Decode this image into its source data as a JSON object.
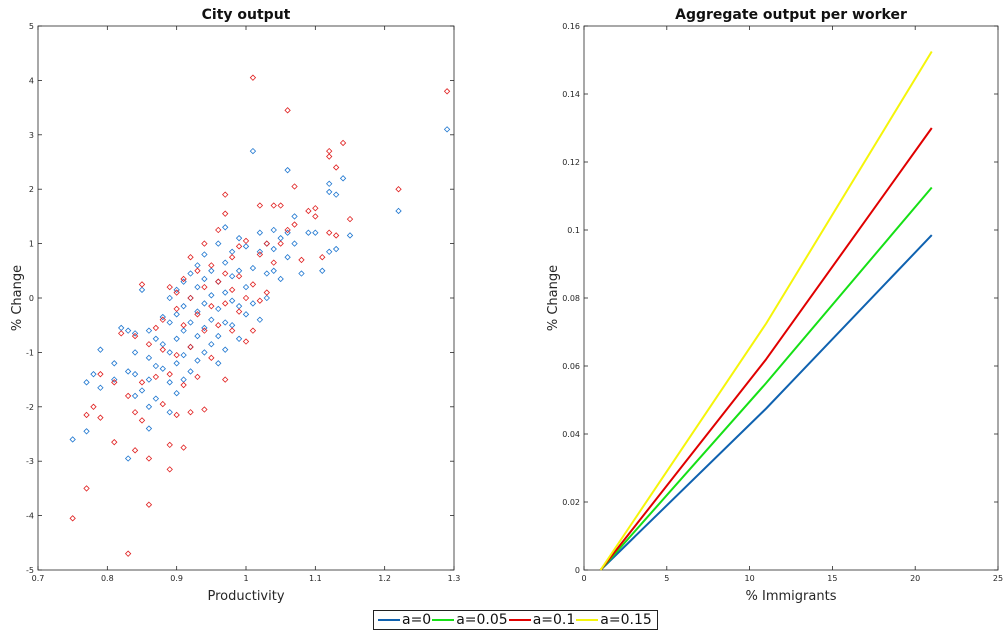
{
  "chart_data": [
    {
      "type": "scatter",
      "title": "City output",
      "xlabel": "Productivity",
      "ylabel": "% Change",
      "xlim": [
        0.7,
        1.3
      ],
      "ylim": [
        -5,
        5
      ],
      "xticks": [
        "0.7",
        "0.8",
        "0.9",
        "1",
        "1.1",
        "1.2",
        "1.3"
      ],
      "yticks": [
        "-5",
        "-4",
        "-3",
        "-2",
        "-1",
        "0",
        "1",
        "2",
        "3",
        "4",
        "5"
      ],
      "grid": false,
      "series": [
        {
          "color": "#1f77d0",
          "marker": "diamond",
          "points": [
            [
              0.75,
              -2.6
            ],
            [
              0.77,
              -2.45
            ],
            [
              0.77,
              -1.55
            ],
            [
              0.78,
              -1.4
            ],
            [
              0.79,
              -1.65
            ],
            [
              0.79,
              -0.95
            ],
            [
              0.81,
              -1.5
            ],
            [
              0.81,
              -1.2
            ],
            [
              0.82,
              -0.55
            ],
            [
              0.83,
              -0.6
            ],
            [
              0.83,
              -1.35
            ],
            [
              0.83,
              -2.95
            ],
            [
              0.84,
              -0.65
            ],
            [
              0.84,
              -1.0
            ],
            [
              0.84,
              -1.4
            ],
            [
              0.84,
              -1.8
            ],
            [
              0.85,
              0.15
            ],
            [
              0.85,
              -1.7
            ],
            [
              0.86,
              -0.6
            ],
            [
              0.86,
              -1.1
            ],
            [
              0.86,
              -1.5
            ],
            [
              0.86,
              -2.0
            ],
            [
              0.86,
              -2.4
            ],
            [
              0.87,
              -0.75
            ],
            [
              0.87,
              -1.25
            ],
            [
              0.87,
              -1.85
            ],
            [
              0.88,
              -0.35
            ],
            [
              0.88,
              -0.85
            ],
            [
              0.88,
              -1.3
            ],
            [
              0.89,
              0.0
            ],
            [
              0.89,
              -0.45
            ],
            [
              0.89,
              -1.0
            ],
            [
              0.89,
              -1.55
            ],
            [
              0.89,
              -2.1
            ],
            [
              0.9,
              0.15
            ],
            [
              0.9,
              -0.3
            ],
            [
              0.9,
              -0.75
            ],
            [
              0.9,
              -1.2
            ],
            [
              0.9,
              -1.75
            ],
            [
              0.91,
              0.3
            ],
            [
              0.91,
              -0.15
            ],
            [
              0.91,
              -0.6
            ],
            [
              0.91,
              -1.05
            ],
            [
              0.91,
              -1.5
            ],
            [
              0.92,
              0.45
            ],
            [
              0.92,
              0.0
            ],
            [
              0.92,
              -0.45
            ],
            [
              0.92,
              -0.9
            ],
            [
              0.92,
              -1.35
            ],
            [
              0.93,
              0.6
            ],
            [
              0.93,
              0.2
            ],
            [
              0.93,
              -0.25
            ],
            [
              0.93,
              -0.7
            ],
            [
              0.93,
              -1.15
            ],
            [
              0.94,
              0.8
            ],
            [
              0.94,
              0.35
            ],
            [
              0.94,
              -0.1
            ],
            [
              0.94,
              -0.55
            ],
            [
              0.94,
              -1.0
            ],
            [
              0.95,
              0.5
            ],
            [
              0.95,
              0.05
            ],
            [
              0.95,
              -0.4
            ],
            [
              0.95,
              -0.85
            ],
            [
              0.96,
              1.0
            ],
            [
              0.96,
              0.3
            ],
            [
              0.96,
              -0.2
            ],
            [
              0.96,
              -0.7
            ],
            [
              0.96,
              -1.2
            ],
            [
              0.97,
              1.3
            ],
            [
              0.97,
              0.65
            ],
            [
              0.97,
              0.1
            ],
            [
              0.97,
              -0.45
            ],
            [
              0.97,
              -0.95
            ],
            [
              0.98,
              0.85
            ],
            [
              0.98,
              0.4
            ],
            [
              0.98,
              -0.05
            ],
            [
              0.98,
              -0.5
            ],
            [
              0.99,
              1.1
            ],
            [
              0.99,
              0.5
            ],
            [
              0.99,
              -0.15
            ],
            [
              0.99,
              -0.75
            ],
            [
              1.0,
              0.95
            ],
            [
              1.0,
              0.2
            ],
            [
              1.0,
              -0.3
            ],
            [
              1.01,
              2.7
            ],
            [
              1.01,
              0.55
            ],
            [
              1.01,
              -0.1
            ],
            [
              1.02,
              1.2
            ],
            [
              1.02,
              0.85
            ],
            [
              1.02,
              -0.4
            ],
            [
              1.03,
              1.0
            ],
            [
              1.03,
              0.45
            ],
            [
              1.03,
              0.0
            ],
            [
              1.04,
              1.25
            ],
            [
              1.04,
              0.9
            ],
            [
              1.04,
              0.5
            ],
            [
              1.05,
              1.1
            ],
            [
              1.05,
              0.35
            ],
            [
              1.06,
              2.35
            ],
            [
              1.06,
              1.2
            ],
            [
              1.06,
              0.75
            ],
            [
              1.07,
              1.5
            ],
            [
              1.07,
              1.0
            ],
            [
              1.08,
              0.45
            ],
            [
              1.09,
              1.2
            ],
            [
              1.1,
              1.2
            ],
            [
              1.11,
              0.5
            ],
            [
              1.12,
              2.1
            ],
            [
              1.12,
              1.95
            ],
            [
              1.12,
              0.85
            ],
            [
              1.13,
              1.9
            ],
            [
              1.13,
              0.9
            ],
            [
              1.14,
              2.2
            ],
            [
              1.15,
              1.15
            ],
            [
              1.22,
              1.6
            ],
            [
              1.29,
              3.1
            ]
          ]
        },
        {
          "color": "#e02020",
          "marker": "diamond",
          "points": [
            [
              0.75,
              -4.05
            ],
            [
              0.77,
              -3.5
            ],
            [
              0.77,
              -2.15
            ],
            [
              0.78,
              -2.0
            ],
            [
              0.79,
              -2.2
            ],
            [
              0.79,
              -1.4
            ],
            [
              0.81,
              -2.65
            ],
            [
              0.81,
              -1.55
            ],
            [
              0.82,
              -0.65
            ],
            [
              0.83,
              -4.7
            ],
            [
              0.83,
              -1.8
            ],
            [
              0.84,
              -2.1
            ],
            [
              0.84,
              -2.8
            ],
            [
              0.84,
              -0.7
            ],
            [
              0.85,
              0.25
            ],
            [
              0.85,
              -1.55
            ],
            [
              0.85,
              -2.25
            ],
            [
              0.86,
              -3.8
            ],
            [
              0.86,
              -2.95
            ],
            [
              0.86,
              -0.85
            ],
            [
              0.87,
              -1.45
            ],
            [
              0.87,
              -0.55
            ],
            [
              0.88,
              -1.95
            ],
            [
              0.88,
              -0.4
            ],
            [
              0.88,
              -0.95
            ],
            [
              0.89,
              -3.15
            ],
            [
              0.89,
              -2.7
            ],
            [
              0.89,
              -1.4
            ],
            [
              0.89,
              0.2
            ],
            [
              0.9,
              -2.15
            ],
            [
              0.9,
              -1.05
            ],
            [
              0.9,
              -0.2
            ],
            [
              0.9,
              0.1
            ],
            [
              0.91,
              -2.75
            ],
            [
              0.91,
              -1.6
            ],
            [
              0.91,
              -0.5
            ],
            [
              0.91,
              0.35
            ],
            [
              0.92,
              -2.1
            ],
            [
              0.92,
              -0.9
            ],
            [
              0.92,
              0.0
            ],
            [
              0.92,
              0.75
            ],
            [
              0.93,
              -1.45
            ],
            [
              0.93,
              -0.3
            ],
            [
              0.93,
              0.5
            ],
            [
              0.94,
              -2.05
            ],
            [
              0.94,
              -0.6
            ],
            [
              0.94,
              0.2
            ],
            [
              0.94,
              1.0
            ],
            [
              0.95,
              -1.1
            ],
            [
              0.95,
              -0.15
            ],
            [
              0.95,
              0.6
            ],
            [
              0.96,
              -0.5
            ],
            [
              0.96,
              0.3
            ],
            [
              0.96,
              1.25
            ],
            [
              0.97,
              -1.5
            ],
            [
              0.97,
              -0.1
            ],
            [
              0.97,
              0.45
            ],
            [
              0.97,
              1.55
            ],
            [
              0.97,
              1.9
            ],
            [
              0.98,
              -0.6
            ],
            [
              0.98,
              0.15
            ],
            [
              0.98,
              0.75
            ],
            [
              0.99,
              -0.25
            ],
            [
              0.99,
              0.4
            ],
            [
              0.99,
              0.95
            ],
            [
              1.0,
              -0.8
            ],
            [
              1.0,
              0.0
            ],
            [
              1.0,
              1.05
            ],
            [
              1.01,
              4.05
            ],
            [
              1.01,
              -0.6
            ],
            [
              1.01,
              0.25
            ],
            [
              1.02,
              -0.05
            ],
            [
              1.02,
              0.8
            ],
            [
              1.02,
              1.7
            ],
            [
              1.03,
              0.1
            ],
            [
              1.03,
              1.0
            ],
            [
              1.04,
              0.65
            ],
            [
              1.04,
              1.7
            ],
            [
              1.05,
              1.7
            ],
            [
              1.05,
              1.0
            ],
            [
              1.06,
              3.45
            ],
            [
              1.06,
              1.25
            ],
            [
              1.07,
              2.05
            ],
            [
              1.07,
              1.35
            ],
            [
              1.08,
              0.7
            ],
            [
              1.09,
              1.6
            ],
            [
              1.1,
              1.65
            ],
            [
              1.1,
              1.5
            ],
            [
              1.11,
              0.75
            ],
            [
              1.12,
              2.7
            ],
            [
              1.12,
              2.6
            ],
            [
              1.12,
              1.2
            ],
            [
              1.13,
              2.4
            ],
            [
              1.13,
              1.15
            ],
            [
              1.14,
              2.85
            ],
            [
              1.15,
              1.45
            ],
            [
              1.22,
              2.0
            ],
            [
              1.29,
              3.8
            ]
          ]
        }
      ]
    },
    {
      "type": "line",
      "title": "Aggregate output per worker",
      "xlabel": "% Immigrants",
      "ylabel": "% Change",
      "xlim": [
        0,
        25
      ],
      "ylim": [
        0,
        0.16
      ],
      "xticks": [
        "0",
        "5",
        "10",
        "15",
        "20",
        "25"
      ],
      "yticks": [
        "0",
        "0.02",
        "0.04",
        "0.06",
        "0.08",
        "0.1",
        "0.12",
        "0.14",
        "0.16"
      ],
      "grid": false,
      "series": [
        {
          "name": "a=0",
          "color": "#0f62b0",
          "x": [
            1,
            11,
            21
          ],
          "y": [
            0,
            0.0475,
            0.0985
          ]
        },
        {
          "name": "a=0.05",
          "color": "#16e016",
          "x": [
            1,
            11,
            21
          ],
          "y": [
            0,
            0.055,
            0.1125
          ]
        },
        {
          "name": "a=0.1",
          "color": "#e00000",
          "x": [
            1,
            11,
            21
          ],
          "y": [
            0,
            0.062,
            0.13
          ]
        },
        {
          "name": "a=0.15",
          "color": "#f5f50a",
          "x": [
            1,
            11,
            21
          ],
          "y": [
            0,
            0.0725,
            0.1525
          ]
        }
      ]
    }
  ],
  "legend": {
    "placement": "bottom-center",
    "items": [
      {
        "label": "a=0",
        "color": "#0f62b0"
      },
      {
        "label": "a=0.05",
        "color": "#16e016"
      },
      {
        "label": "a=0.1",
        "color": "#e00000"
      },
      {
        "label": "a=0.15",
        "color": "#f5f50a"
      }
    ]
  }
}
